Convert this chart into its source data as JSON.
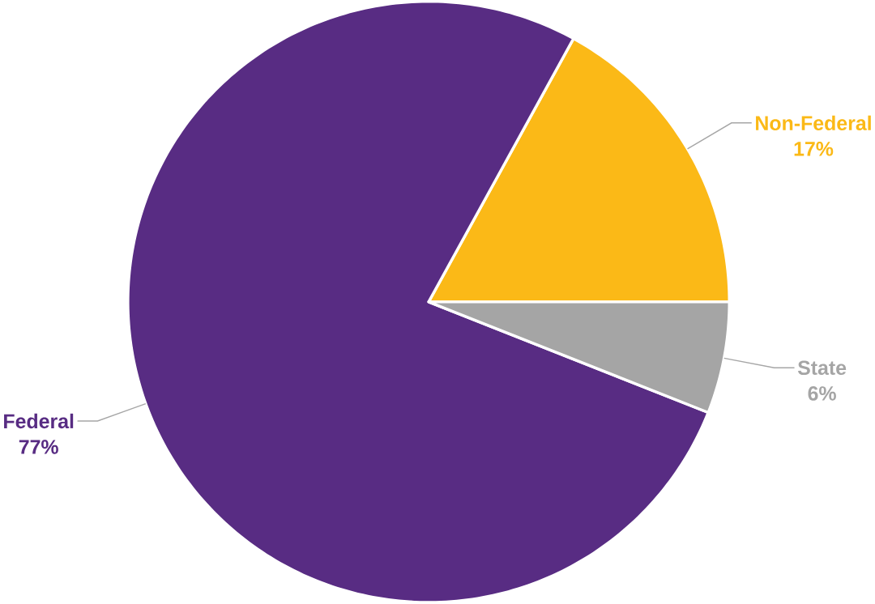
{
  "chart_data": {
    "type": "pie",
    "categories": [
      "Non-Federal",
      "Federal",
      "State"
    ],
    "values": [
      17,
      77,
      6
    ],
    "colors": [
      "#fbb917",
      "#582c83",
      "#a5a5a5"
    ],
    "value_labels": [
      "17%",
      "77%",
      "6%"
    ]
  }
}
